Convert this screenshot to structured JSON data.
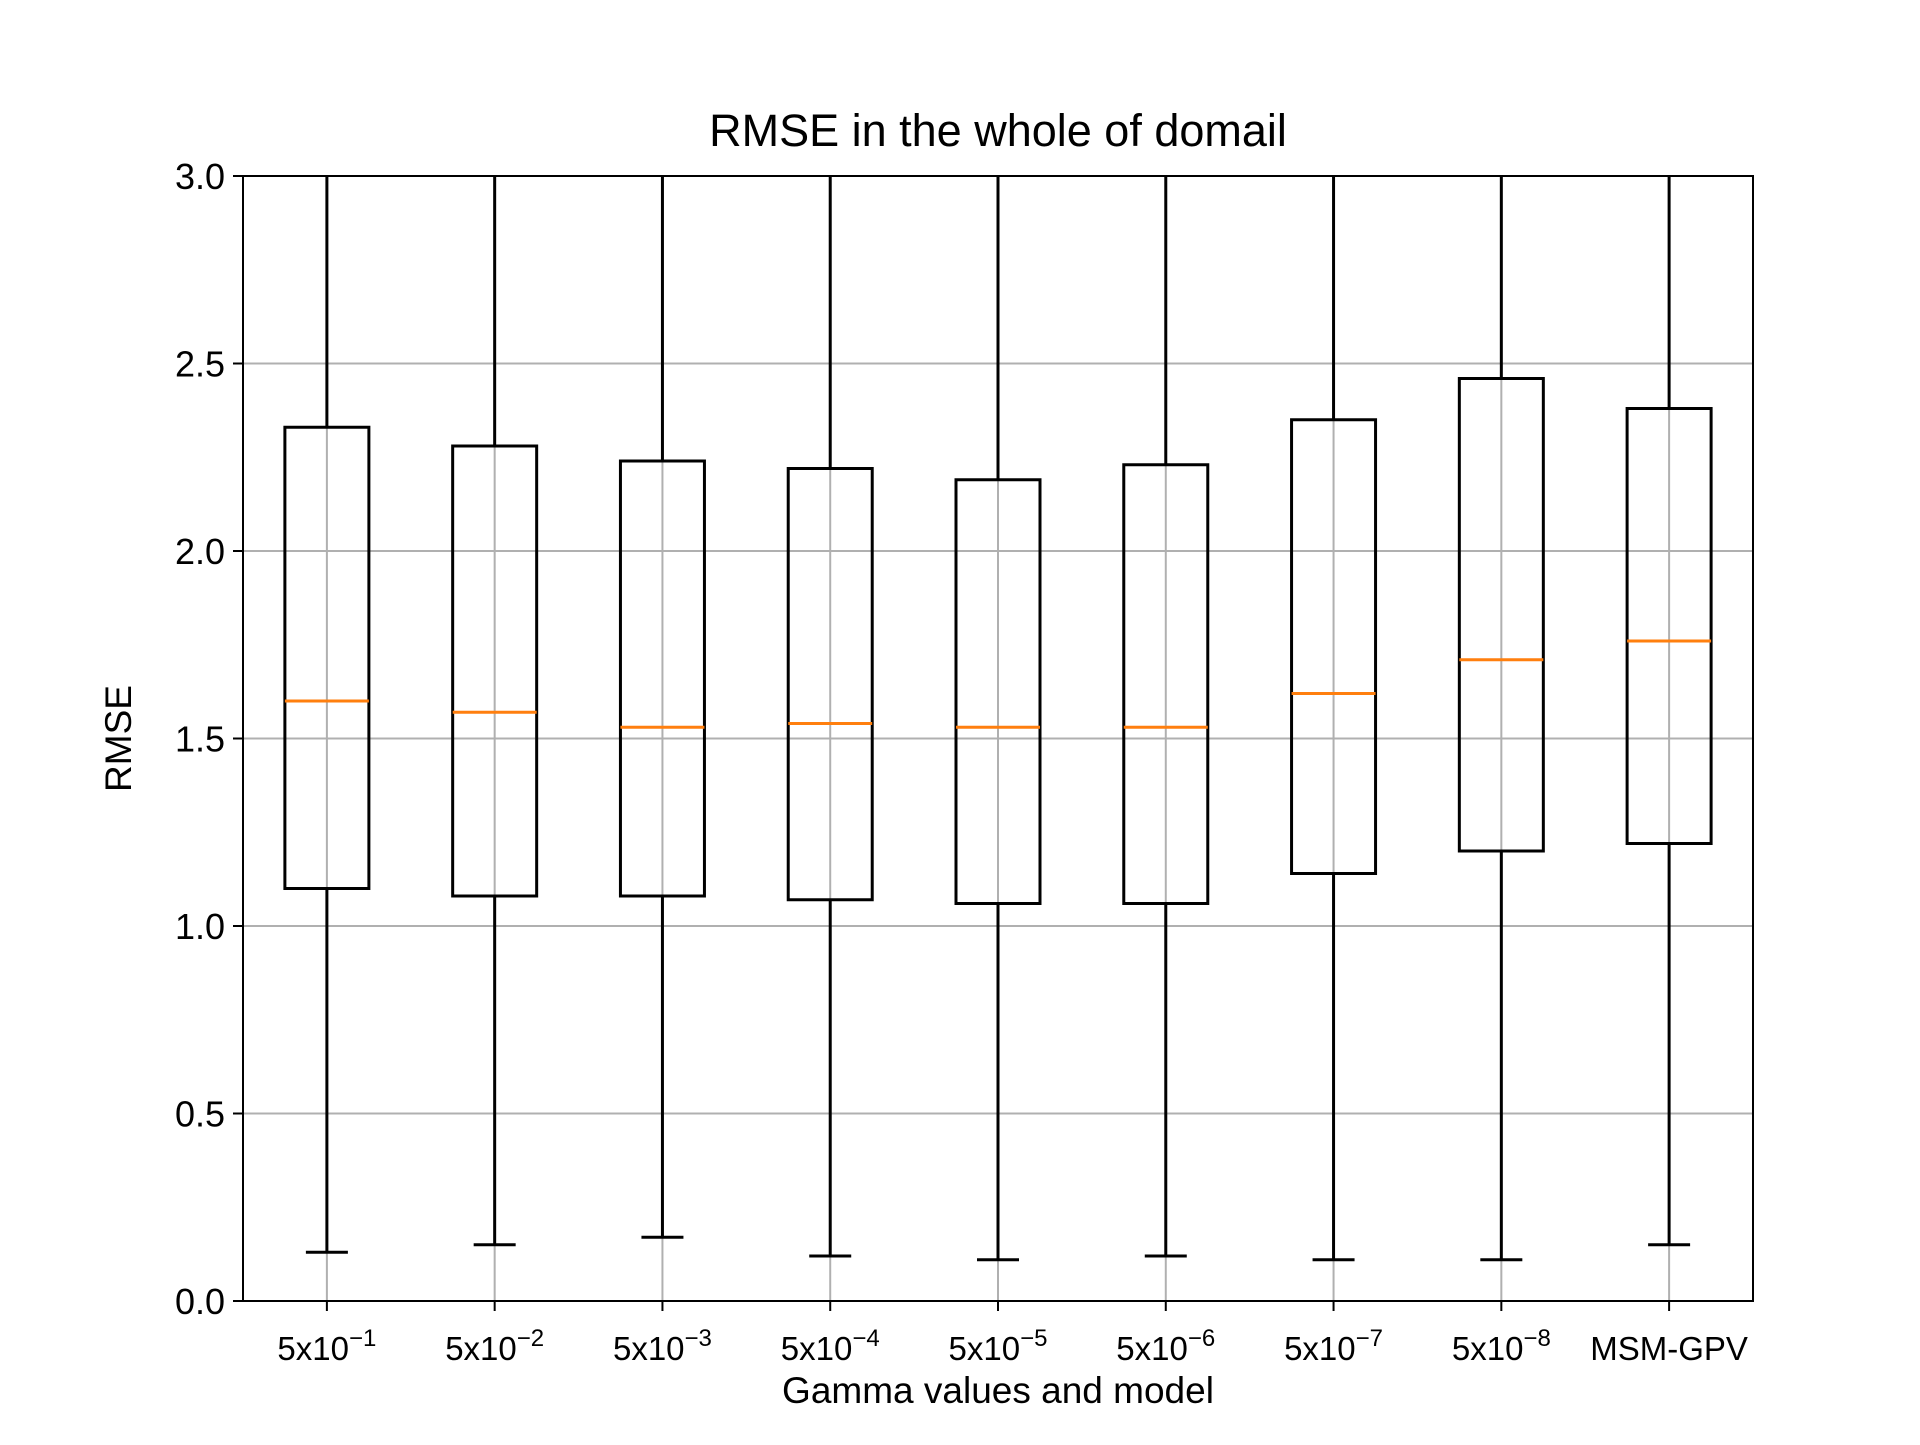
{
  "chart_data": {
    "type": "box",
    "title": "RMSE in the whole of domail",
    "xlabel": "Gamma values and model",
    "ylabel": "RMSE",
    "ylim": [
      0.0,
      3.0
    ],
    "yticks": [
      0.0,
      0.5,
      1.0,
      1.5,
      2.0,
      2.5,
      3.0
    ],
    "ytick_labels": [
      "0.0",
      "0.5",
      "1.0",
      "1.5",
      "2.0",
      "2.5",
      "3.0"
    ],
    "grid": true,
    "categories": [
      {
        "base": "5x10",
        "exp": "−1"
      },
      {
        "base": "5x10",
        "exp": "−2"
      },
      {
        "base": "5x10",
        "exp": "−3"
      },
      {
        "base": "5x10",
        "exp": "−4"
      },
      {
        "base": "5x10",
        "exp": "−5"
      },
      {
        "base": "5x10",
        "exp": "−6"
      },
      {
        "base": "5x10",
        "exp": "−7"
      },
      {
        "base": "5x10",
        "exp": "−8"
      },
      {
        "base": "MSM-GPV",
        "exp": ""
      }
    ],
    "boxes": [
      {
        "whisker_low": 0.13,
        "q1": 1.1,
        "median": 1.6,
        "q3": 2.33,
        "whisker_high": 3.0
      },
      {
        "whisker_low": 0.15,
        "q1": 1.08,
        "median": 1.57,
        "q3": 2.28,
        "whisker_high": 3.0
      },
      {
        "whisker_low": 0.17,
        "q1": 1.08,
        "median": 1.53,
        "q3": 2.24,
        "whisker_high": 3.0
      },
      {
        "whisker_low": 0.12,
        "q1": 1.07,
        "median": 1.54,
        "q3": 2.22,
        "whisker_high": 3.0
      },
      {
        "whisker_low": 0.11,
        "q1": 1.06,
        "median": 1.53,
        "q3": 2.19,
        "whisker_high": 3.0
      },
      {
        "whisker_low": 0.12,
        "q1": 1.06,
        "median": 1.53,
        "q3": 2.23,
        "whisker_high": 3.0
      },
      {
        "whisker_low": 0.11,
        "q1": 1.14,
        "median": 1.62,
        "q3": 2.35,
        "whisker_high": 3.0
      },
      {
        "whisker_low": 0.11,
        "q1": 1.2,
        "median": 1.71,
        "q3": 2.46,
        "whisker_high": 3.0
      },
      {
        "whisker_low": 0.15,
        "q1": 1.22,
        "median": 1.76,
        "q3": 2.38,
        "whisker_high": 3.0
      }
    ],
    "colors": {
      "box": "#000000",
      "median": "#ff7f0e",
      "grid": "#b0b0b0"
    }
  }
}
